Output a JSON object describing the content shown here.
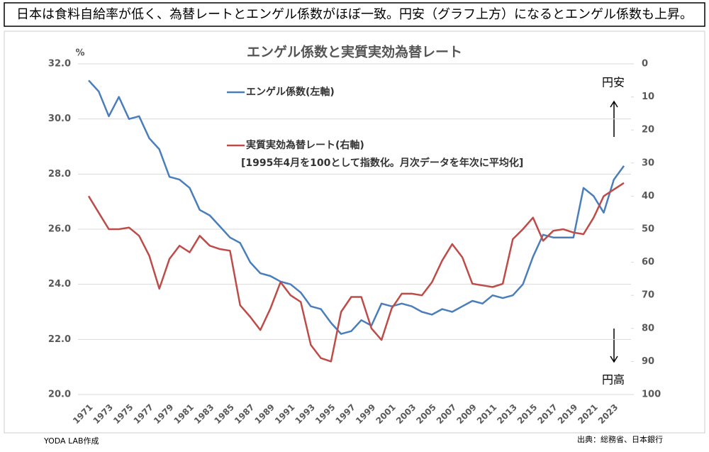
{
  "header": "日本は食料自給率が低く、為替レートとエンゲル係数がほぼ一致。円安（グラフ上方）になるとエンゲル係数も上昇。",
  "chart_data": {
    "type": "line",
    "title": "エンゲル係数と実質実効為替レート",
    "y_unit": "%",
    "note": "[1995年4月を100として指数化。月次データを年次に平均化]",
    "annotations": [
      "円安",
      "円高"
    ],
    "categories": [
      "1971",
      null,
      "1973",
      null,
      "1975",
      null,
      "1977",
      null,
      "1979",
      null,
      "1981",
      null,
      "1983",
      null,
      "1985",
      null,
      "1987",
      null,
      "1989",
      null,
      "1991",
      null,
      "1993",
      null,
      "1995",
      null,
      "1997",
      null,
      "1999",
      null,
      "2001",
      null,
      "2003",
      null,
      "2005",
      null,
      "2007",
      null,
      "2009",
      null,
      "2011",
      null,
      "2013",
      null,
      "2015",
      null,
      "2017",
      null,
      "2019",
      null,
      "2021",
      null,
      "2023",
      null
    ],
    "series": [
      {
        "name": "エンゲル係数(左軸)",
        "color": "#4a7ebb",
        "axis": "y",
        "values": [
          31.4,
          31.0,
          30.1,
          30.8,
          30.0,
          30.1,
          29.3,
          28.9,
          27.9,
          27.8,
          27.5,
          26.7,
          26.5,
          26.1,
          25.7,
          25.5,
          24.8,
          24.4,
          24.3,
          24.1,
          24.0,
          23.7,
          23.2,
          23.1,
          22.6,
          22.2,
          22.3,
          22.7,
          22.5,
          23.3,
          23.2,
          23.3,
          23.2,
          23.0,
          22.9,
          23.1,
          23.0,
          23.2,
          23.4,
          23.3,
          23.6,
          23.5,
          23.6,
          24.0,
          25.0,
          25.8,
          25.7,
          25.7,
          25.7,
          27.5,
          27.2,
          26.6,
          27.8,
          28.3
        ]
      },
      {
        "name": "実質実効為替レート(右軸)",
        "color": "#be4b48",
        "axis": "y2",
        "values": [
          40,
          45,
          50,
          50,
          49.5,
          52,
          58,
          68,
          59,
          55,
          57,
          52,
          55,
          56,
          56.5,
          73,
          76.5,
          80.5,
          74,
          66,
          70,
          72,
          85,
          89,
          90,
          75,
          70.5,
          70.5,
          80,
          83.5,
          74,
          69.5,
          69.5,
          70,
          66,
          59.5,
          54.5,
          58.5,
          66.5,
          67,
          67.5,
          66.5,
          53,
          50,
          46.5,
          53.5,
          50.5,
          50,
          51,
          51.5,
          46.5,
          40,
          38,
          36
        ]
      }
    ],
    "ylim": [
      20,
      32
    ],
    "yticks": [
      {
        "value": 20,
        "label": "20.0"
      },
      {
        "value": 22,
        "label": "22.0"
      },
      {
        "value": 24,
        "label": "24.0"
      },
      {
        "value": 26,
        "label": "26.0"
      },
      {
        "value": 28,
        "label": "28.0"
      },
      {
        "value": 30,
        "label": "30.0"
      },
      {
        "value": 32,
        "label": "32.0"
      }
    ],
    "y2lim": [
      100,
      0
    ],
    "y2ticks": [
      0,
      10,
      20,
      30,
      40,
      50,
      60,
      70,
      80,
      90,
      100
    ],
    "grid": true
  },
  "footer": {
    "left": "YODA LAB作成",
    "right": "出典：総務省、日本銀行"
  }
}
